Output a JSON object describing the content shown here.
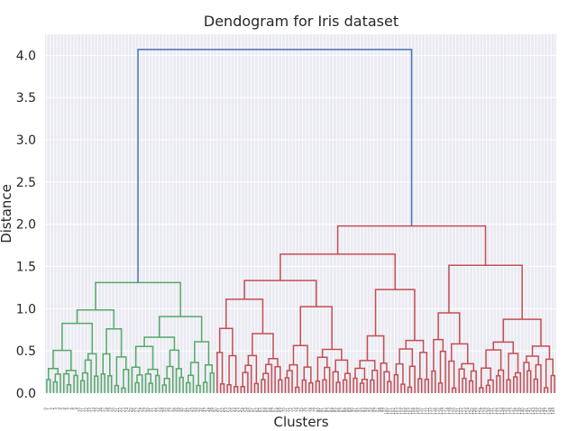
{
  "chart_data": {
    "type": "dendrogram",
    "title": "Dendogram for Iris dataset",
    "xlabel": "Clusters",
    "ylabel": "Distance",
    "ylim": [
      0,
      4.25
    ],
    "yticks": [
      0.0,
      0.5,
      1.0,
      1.5,
      2.0,
      2.5,
      3.0,
      3.5,
      4.0
    ],
    "grid": true,
    "background": "#eaeaf2",
    "leaf_count": 150,
    "colors": {
      "cluster_1": "#55a868",
      "cluster_2": "#c44e52",
      "root": "#4c72b0"
    },
    "root": {
      "height": 4.07,
      "left_cluster_height": 1.31,
      "right_cluster_height": 1.98
    },
    "clusters": [
      {
        "name": "cluster_1",
        "color": "#55a868",
        "leaf_range": [
          0,
          50
        ],
        "merge_heights": [
          1.31,
          1.09,
          0.76,
          0.55,
          0.74,
          0.47,
          0.54,
          0.38,
          0.48,
          0.35,
          0.3,
          0.28
        ]
      },
      {
        "name": "cluster_2",
        "color": "#c44e52",
        "leaf_range": [
          50,
          150
        ],
        "merge_heights": [
          1.98,
          1.38,
          1.8,
          0.98,
          1.09,
          1.19,
          1.06,
          0.92,
          0.7,
          0.68,
          0.57,
          0.64
        ]
      }
    ]
  }
}
